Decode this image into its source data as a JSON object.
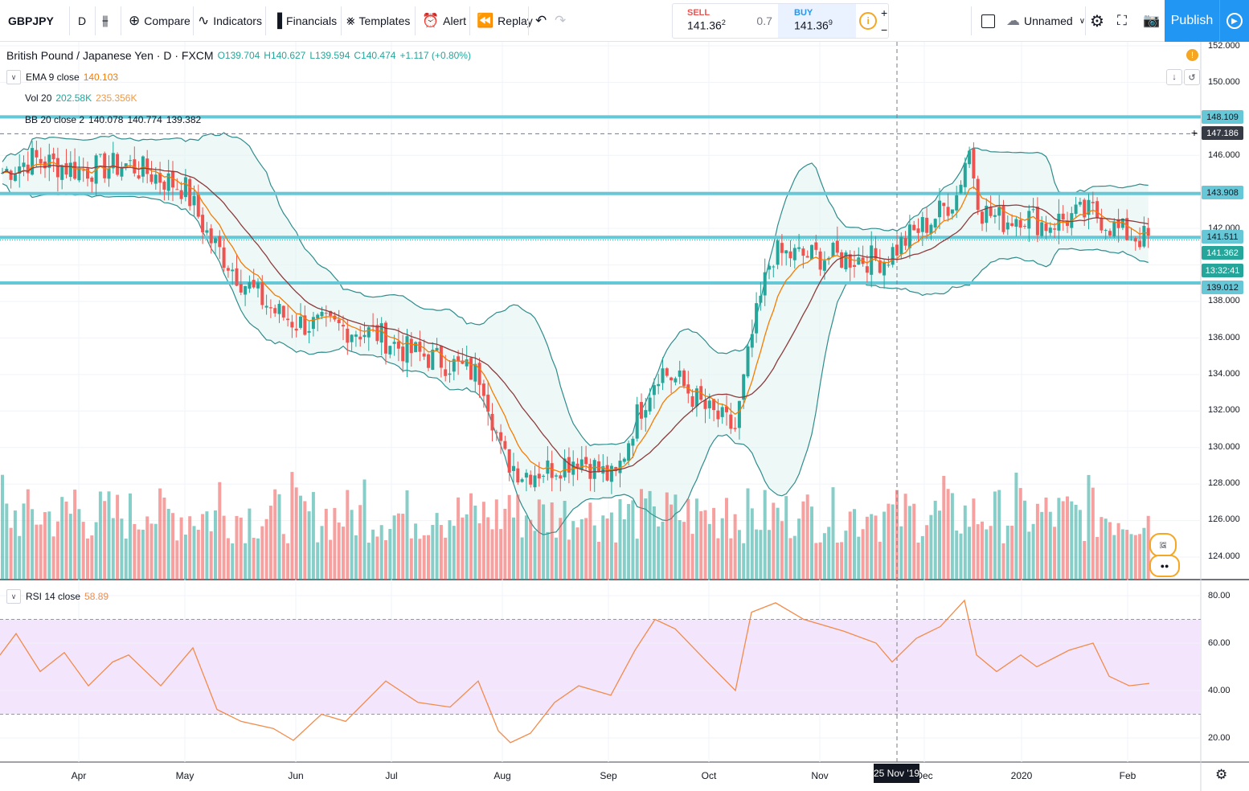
{
  "toolbar": {
    "symbol": "GBPJPY",
    "interval": "D",
    "compare": "Compare",
    "indicators": "Indicators",
    "financials": "Financials",
    "templates": "Templates",
    "alert": "Alert",
    "replay": "Replay",
    "layout_name": "Unnamed",
    "publish": "Publish"
  },
  "trade": {
    "sell_label": "SELL",
    "sell_price": "141.36",
    "sell_sup": "2",
    "spread": "0.7",
    "buy_label": "BUY",
    "buy_price": "141.36",
    "buy_sup": "9"
  },
  "legend": {
    "title": "British Pound / Japanese Yen · D · FXCM",
    "open": "O139.704",
    "high": "H140.627",
    "low": "L139.594",
    "close": "C140.474",
    "change": "+1.117 (+0.80%)",
    "ema_label": "EMA 9 close",
    "ema_value": "140.103",
    "vol_label": "Vol 20",
    "vol_value1": "202.58K",
    "vol_value2": "235.356K",
    "bb_label": "BB 20 close 2",
    "bb_basis": "140.078",
    "bb_upper": "140.774",
    "bb_lower": "139.382",
    "rsi_label": "RSI 14 close",
    "rsi_value": "58.89"
  },
  "price_axis": [
    "152.000",
    "150.000",
    "146.000",
    "142.000",
    "138.000",
    "136.000",
    "134.000",
    "132.000",
    "130.000",
    "128.000",
    "126.000",
    "124.000"
  ],
  "rsi_axis": [
    "80.00",
    "60.00",
    "40.00",
    "20.00"
  ],
  "price_labels": {
    "h1": "148.109",
    "crosshair": "147.186",
    "h2": "143.908",
    "h3": "141.511",
    "last": "141.362",
    "countdown": "13:32:41",
    "h4": "139.012"
  },
  "time_axis": [
    "Apr",
    "May",
    "Jun",
    "Jul",
    "Aug",
    "Sep",
    "Oct",
    "Nov",
    "Dec",
    "2020",
    "Feb"
  ],
  "crosshair_date": "25 Nov '19",
  "colors": {
    "up": "#26a69a",
    "down": "#ef5350",
    "ema": "#f57c00",
    "bb_basis": "#8d3b3b",
    "bb_band": "#2f8c8c",
    "hline": "#66c7d6",
    "rsi": "#f28b4b",
    "rsi_bg": "#f3e5fb"
  },
  "chart_data": {
    "type": "candlestick",
    "symbol": "GBPJPY",
    "interval": "D",
    "horizontal_lines": [
      148.109,
      143.908,
      141.511,
      139.012
    ],
    "last_price": 141.362,
    "crosshair_price": 147.186,
    "ohlc_close_path": [
      {
        "x": "Mar",
        "y": 145
      },
      {
        "x": "Apr",
        "y": 145.5
      },
      {
        "x": "May",
        "y": 144
      },
      {
        "x": "mid-May",
        "y": 140
      },
      {
        "x": "Jun",
        "y": 136.8
      },
      {
        "x": "Jul",
        "y": 136.2
      },
      {
        "x": "Jul-end",
        "y": 134.8
      },
      {
        "x": "Aug",
        "y": 128.5
      },
      {
        "x": "mid-Aug",
        "y": 128.5
      },
      {
        "x": "Sep",
        "y": 128.2
      },
      {
        "x": "mid-Sep",
        "y": 134.5
      },
      {
        "x": "Oct",
        "y": 131
      },
      {
        "x": "mid-Oct",
        "y": 141
      },
      {
        "x": "Nov",
        "y": 140.5
      },
      {
        "x": "Dec",
        "y": 142.5
      },
      {
        "x": "mid-Dec",
        "y": 147
      },
      {
        "x": "2020",
        "y": 142
      },
      {
        "x": "Feb",
        "y": 141.4
      }
    ],
    "rsi_range": [
      20,
      80
    ],
    "rsi_bands": [
      30,
      70
    ]
  }
}
